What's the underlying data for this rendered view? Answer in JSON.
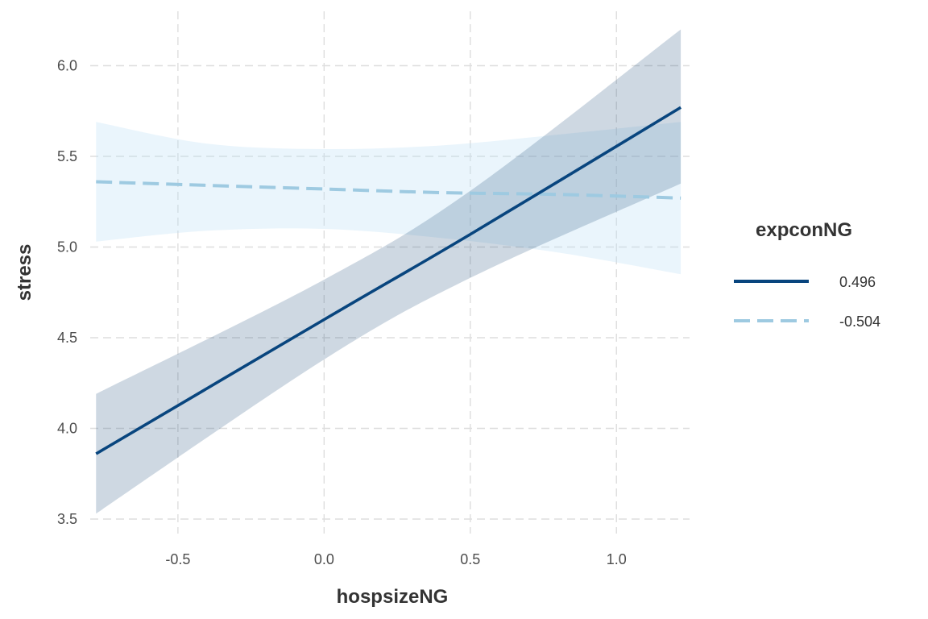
{
  "chart_data": {
    "type": "line",
    "xlabel": "hospsizeNG",
    "ylabel": "stress",
    "xlim": [
      -0.8,
      1.25
    ],
    "ylim": [
      3.42,
      6.3
    ],
    "x_ticks": [
      -0.5,
      0.0,
      0.5,
      1.0
    ],
    "x_tick_labels": [
      "-0.5",
      "0.0",
      "0.5",
      "1.0"
    ],
    "y_ticks": [
      3.5,
      4.0,
      4.5,
      5.0,
      5.5,
      6.0
    ],
    "y_tick_labels": [
      "3.5",
      "4.0",
      "4.5",
      "5.0",
      "5.5",
      "6.0"
    ],
    "grid": true,
    "legend": {
      "title": "expconNG",
      "placement": "right"
    },
    "series": [
      {
        "name": "0.496",
        "line_style": "solid",
        "color": "#08457e",
        "band_color": "#1f4e79",
        "band_opacity": 0.22,
        "x": [
          -0.78,
          0.0,
          0.5,
          1.22
        ],
        "y": [
          3.86,
          4.6,
          5.07,
          5.77
        ],
        "lower": [
          3.53,
          4.38,
          4.83,
          5.35
        ],
        "upper": [
          4.19,
          4.82,
          5.31,
          6.2
        ]
      },
      {
        "name": "-0.504",
        "line_style": "dashed",
        "color": "#9ecae1",
        "band_color": "#bddff7",
        "band_opacity": 0.32,
        "x": [
          -0.78,
          -0.4,
          0.0,
          0.4,
          0.8,
          1.22
        ],
        "y": [
          5.36,
          5.34,
          5.32,
          5.3,
          5.29,
          5.27
        ],
        "lower": [
          5.03,
          5.09,
          5.1,
          5.05,
          4.97,
          4.85
        ],
        "upper": [
          5.69,
          5.57,
          5.54,
          5.56,
          5.62,
          5.69
        ]
      }
    ]
  }
}
